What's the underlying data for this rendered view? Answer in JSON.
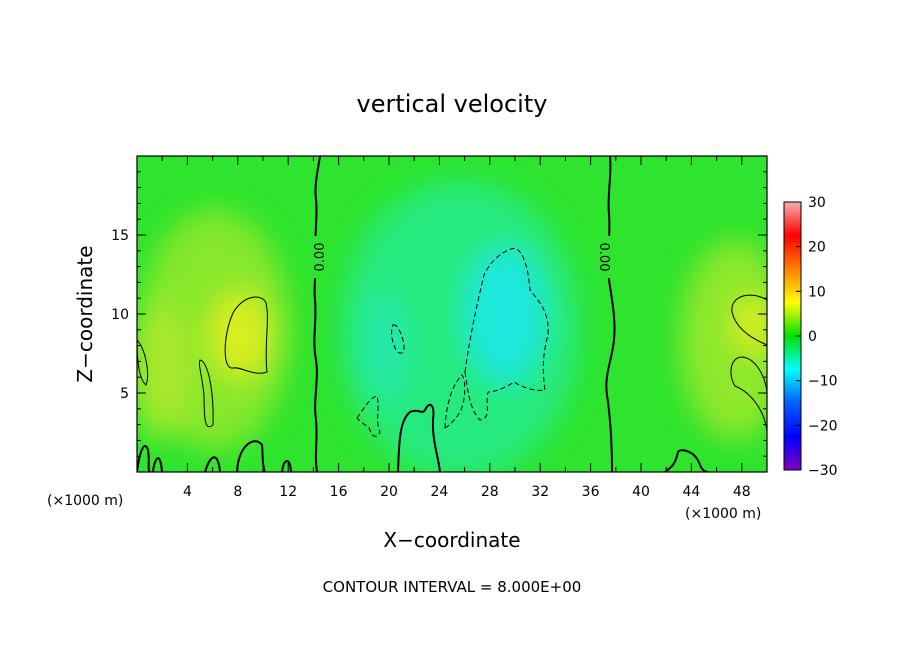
{
  "chart_data": {
    "type": "heatmap",
    "title": "vertical velocity",
    "xlabel": "X−coordinate",
    "ylabel": "Z−coordinate",
    "x_unit_label": "(×1000 m)",
    "x_unit_label_right": "(×1000 m)",
    "xlim": [
      0,
      50
    ],
    "ylim": [
      0,
      20
    ],
    "x_ticks": [
      "4",
      "8",
      "12",
      "16",
      "20",
      "24",
      "28",
      "32",
      "36",
      "40",
      "44",
      "48"
    ],
    "y_ticks": [
      "5",
      "10",
      "15"
    ],
    "colorbar": {
      "range": [
        -30,
        30
      ],
      "tick_labels": [
        "30",
        "20",
        "10",
        "0",
        "−10",
        "−20",
        "−30"
      ],
      "colors": [
        "#f8b0b0",
        "#ff0000",
        "#ff8000",
        "#ffff00",
        "#00e000",
        "#00ffff",
        "#0060ff",
        "#0000ff",
        "#8000c0"
      ]
    },
    "contour_interval_text": "CONTOUR INTERVAL = 8.000E+00",
    "contour_label": "0.00",
    "zero_contour_x": [
      14.8,
      37.4
    ],
    "field_features": [
      {
        "x": 9,
        "z": 9,
        "value": 12
      },
      {
        "x": 49,
        "z": 9.5,
        "value": 10
      },
      {
        "x": 3,
        "z": 6,
        "value": 8
      },
      {
        "x": 29.5,
        "z": 10,
        "value": -12
      },
      {
        "x": 20,
        "z": 6,
        "value": -5
      },
      {
        "x": 26,
        "z": 5,
        "value": -4
      }
    ]
  }
}
